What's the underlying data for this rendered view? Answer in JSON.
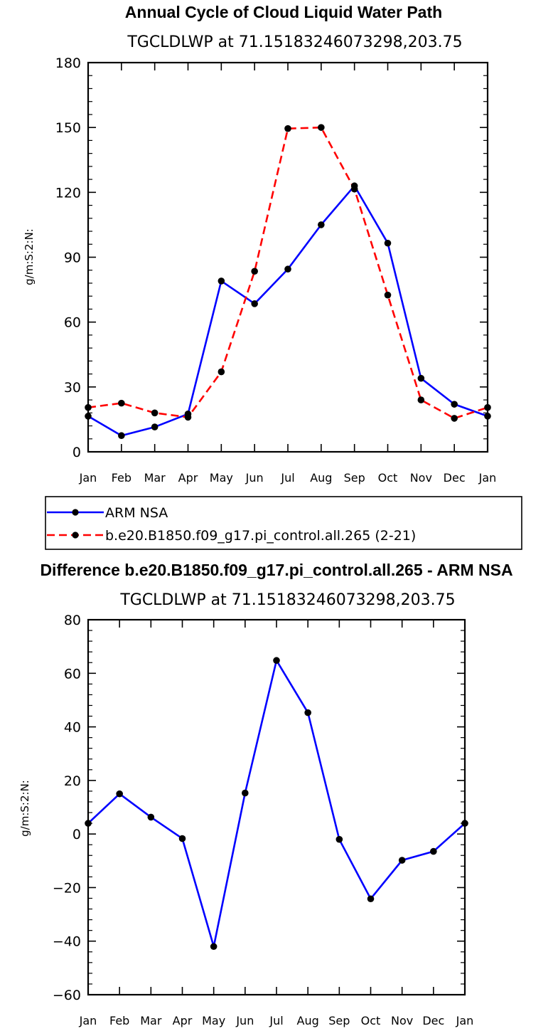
{
  "chart_data": [
    {
      "type": "line",
      "title": "Annual Cycle of Cloud Liquid Water Path",
      "subtitle": "TGCLDLWP  at  71.15183246073298,203.75",
      "ylabel": "g/m:S:2:N:",
      "xlabel": "",
      "categories": [
        "Jan",
        "Feb",
        "Mar",
        "Apr",
        "May",
        "Jun",
        "Jul",
        "Aug",
        "Sep",
        "Oct",
        "Nov",
        "Dec",
        "Jan"
      ],
      "ylim": [
        0,
        180
      ],
      "yticks": [
        0,
        30,
        60,
        90,
        120,
        150,
        180
      ],
      "series": [
        {
          "name": "ARM  NSA",
          "color": "#0000ff",
          "dashed": false,
          "values": [
            16.5,
            7.5,
            11.5,
            17.5,
            79,
            68.5,
            84.5,
            105,
            123,
            96.5,
            34,
            22,
            16.5
          ]
        },
        {
          "name": "b.e20.B1850.f09_g17.pi_control.all.265 (2-21)",
          "color": "#ff0000",
          "dashed": true,
          "values": [
            20.5,
            22.5,
            18,
            16,
            37,
            83.5,
            149.5,
            150,
            121.5,
            72.5,
            24,
            15.5,
            20.5
          ]
        }
      ]
    },
    {
      "type": "line",
      "title": "Difference b.e20.B1850.f09_g17.pi_control.all.265 - ARM NSA",
      "subtitle": "TGCLDLWP  at  71.15183246073298,203.75",
      "ylabel": "g/m:S:2:N:",
      "xlabel": "",
      "categories": [
        "Jan",
        "Feb",
        "Mar",
        "Apr",
        "May",
        "Jun",
        "Jul",
        "Aug",
        "Sep",
        "Oct",
        "Nov",
        "Dec",
        "Jan"
      ],
      "ylim": [
        -60,
        80
      ],
      "yticks": [
        -60,
        -40,
        -20,
        0,
        20,
        40,
        60,
        80
      ],
      "yticklabels": [
        "−60",
        "−40",
        "−20",
        "0",
        "20",
        "40",
        "60",
        "80"
      ],
      "series": [
        {
          "name": "Difference",
          "color": "#0000ff",
          "dashed": false,
          "values": [
            4,
            15,
            6.3,
            -1.7,
            -42,
            15.3,
            64.8,
            45.3,
            -2,
            -24.2,
            -9.8,
            -6.5,
            4
          ]
        }
      ]
    }
  ]
}
